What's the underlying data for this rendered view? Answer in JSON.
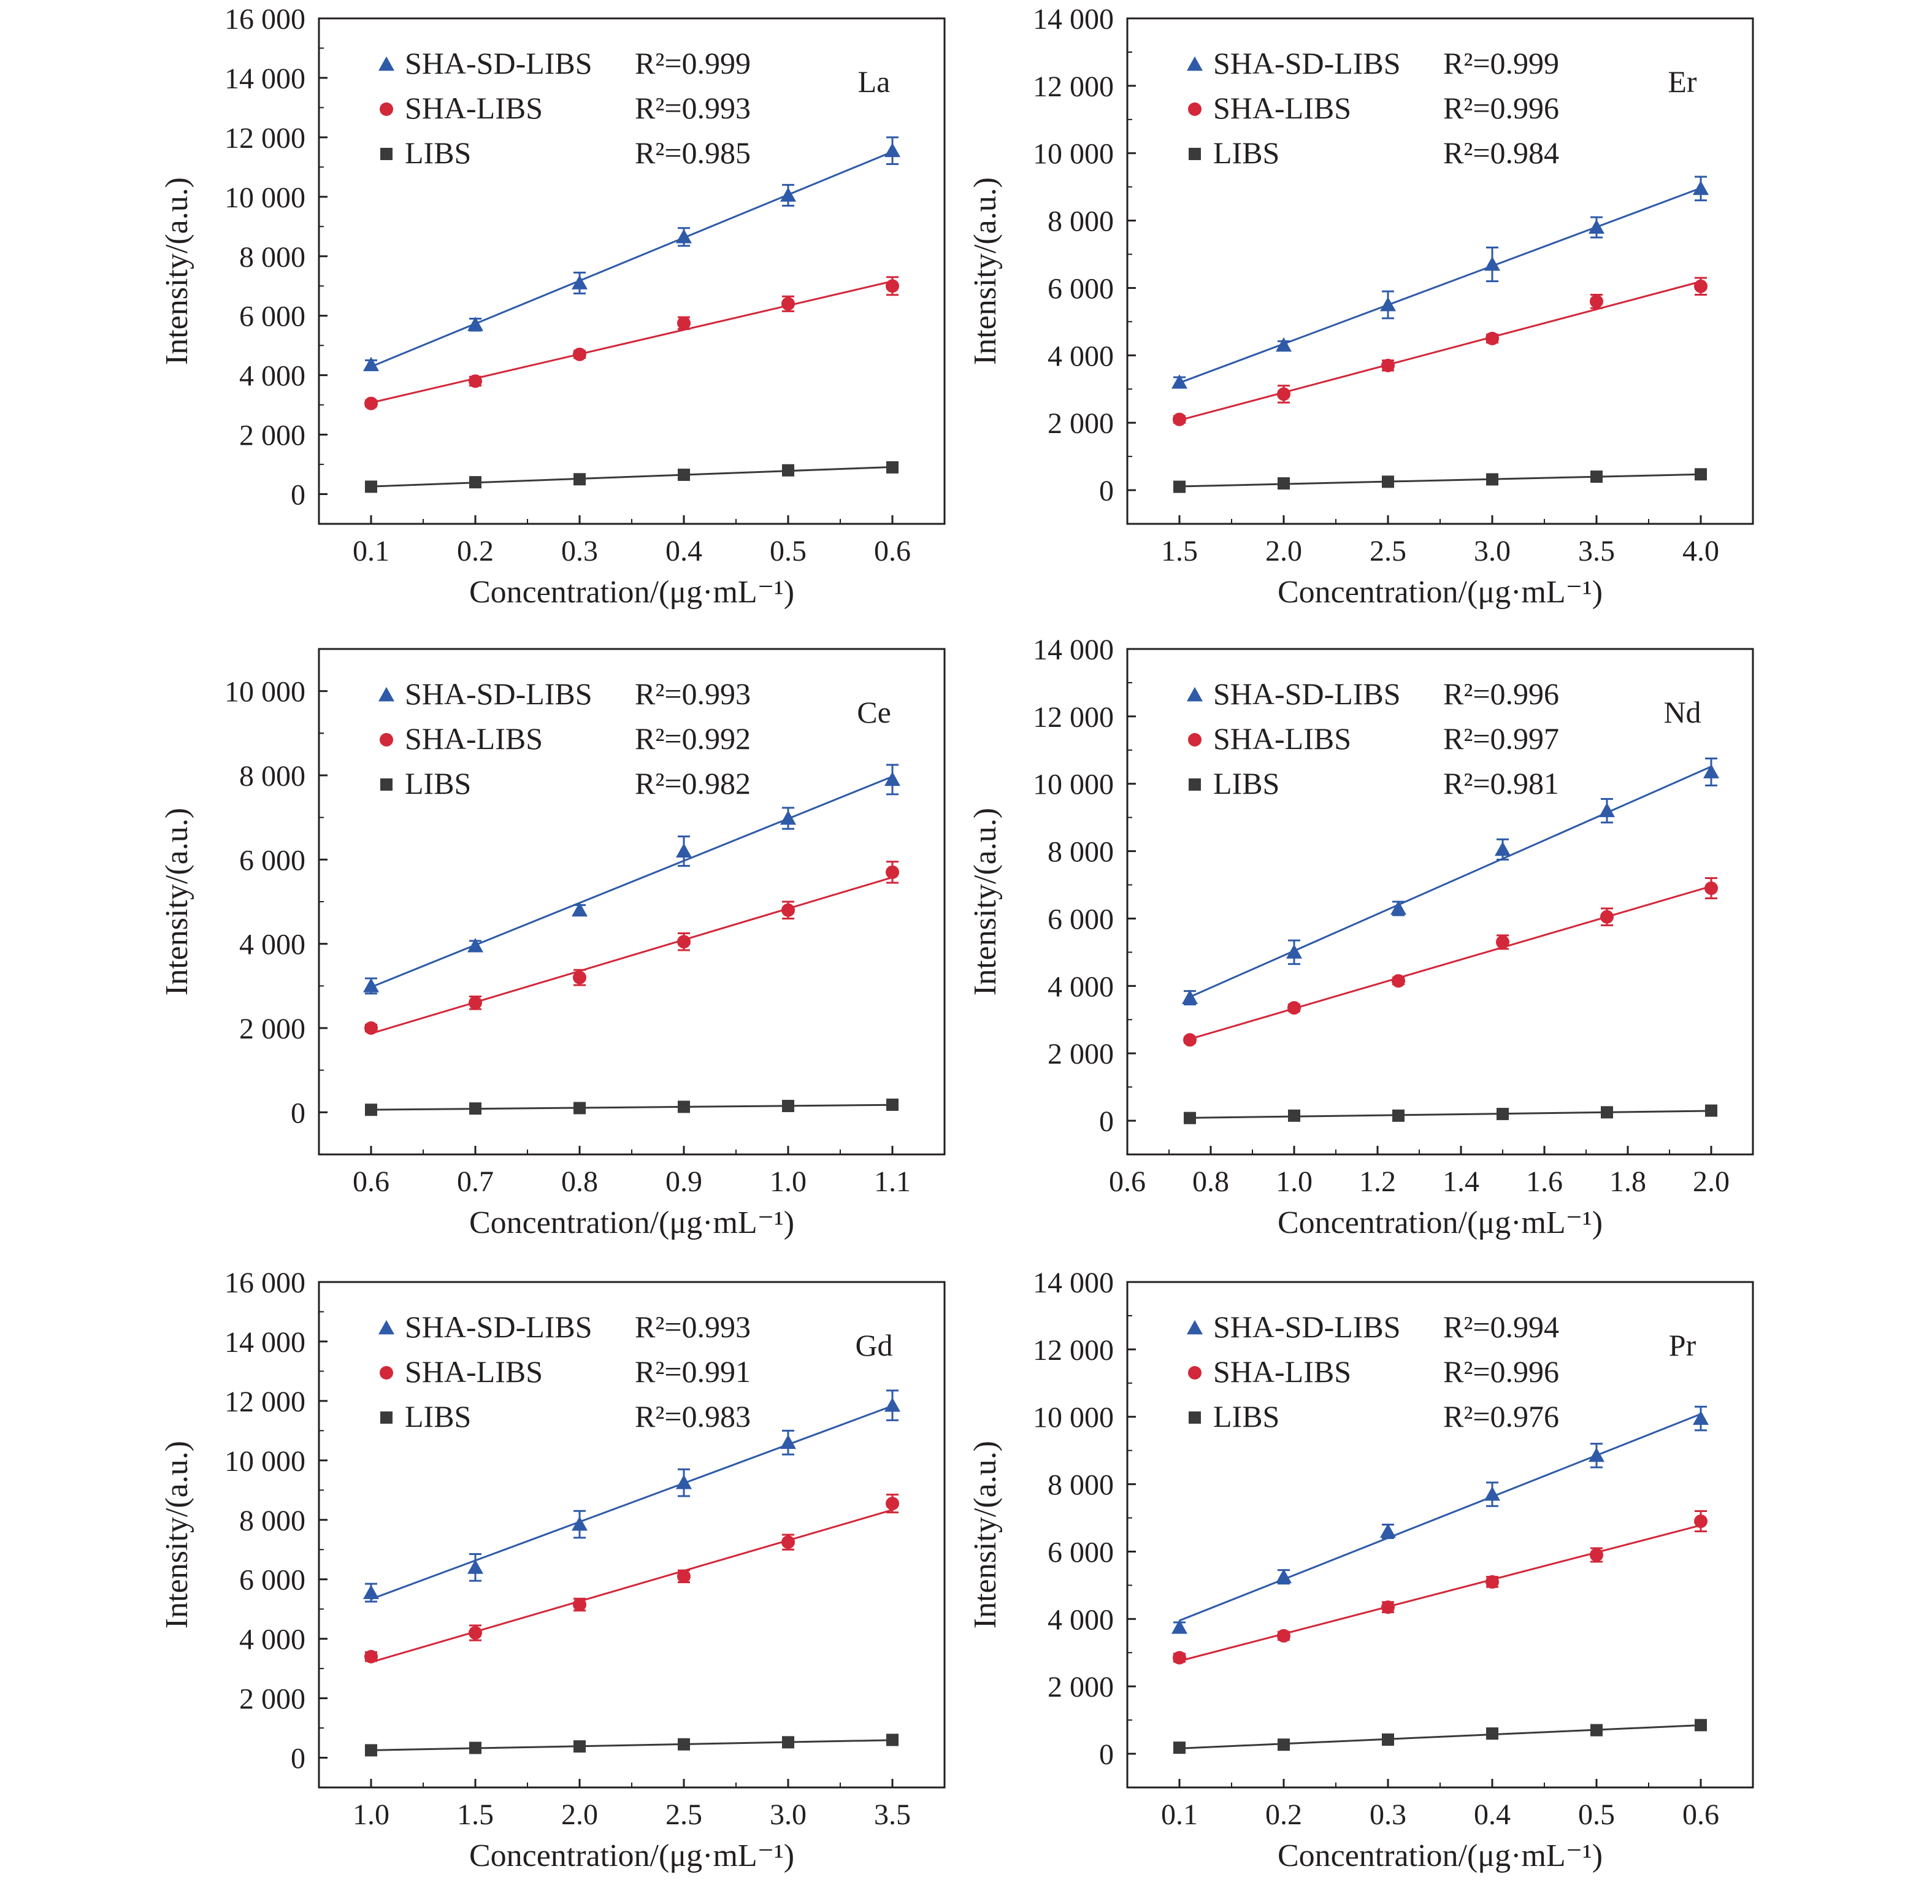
{
  "colors": {
    "SHA-SD-LIBS": "#2e5aa8",
    "SHA-LIBS": "#d3273a",
    "LIBS": "#3a3a3a",
    "axis": "#231f20"
  },
  "markers": {
    "SHA-SD-LIBS": "triangle",
    "SHA-LIBS": "circle",
    "LIBS": "square"
  },
  "chart_data": [
    {
      "type": "scatter",
      "element": "La",
      "xlabel": "Concentration/(μg·mL⁻¹)",
      "ylabel": "Intensity/(a.u.)",
      "xlim": [
        0.05,
        0.65
      ],
      "ylim": [
        -1000,
        16000
      ],
      "xticks": [
        0.1,
        0.2,
        0.3,
        0.4,
        0.5,
        0.6
      ],
      "xtick_labels": [
        "0.1",
        "0.2",
        "0.3",
        "0.4",
        "0.5",
        "0.6"
      ],
      "yticks": [
        0,
        2000,
        4000,
        6000,
        8000,
        10000,
        12000,
        14000,
        16000
      ],
      "ytick_labels": [
        "0",
        "2 000",
        "4 000",
        "6 000",
        "8 000",
        "10 000",
        "12 000",
        "14 000",
        "16 000"
      ],
      "grid": false,
      "legend_position": "top-left",
      "x": [
        0.1,
        0.2,
        0.3,
        0.4,
        0.5,
        0.6
      ],
      "series": [
        {
          "name": "SHA-SD-LIBS",
          "r2": "R²=0.999",
          "values": [
            4350,
            5700,
            7100,
            8650,
            10050,
            11550
          ],
          "errors": [
            150,
            200,
            350,
            300,
            350,
            450
          ]
        },
        {
          "name": "SHA-LIBS",
          "r2": "R²=0.993",
          "values": [
            3050,
            3800,
            4700,
            5750,
            6400,
            7000
          ],
          "errors": [
            100,
            150,
            120,
            200,
            250,
            300
          ]
        },
        {
          "name": "LIBS",
          "r2": "R²=0.985",
          "values": [
            250,
            400,
            500,
            650,
            800,
            900
          ],
          "errors": [
            40,
            40,
            50,
            50,
            50,
            50
          ]
        }
      ]
    },
    {
      "type": "scatter",
      "element": "Er",
      "xlabel": "Concentration/(μg·mL⁻¹)",
      "ylabel": "Intensity/(a.u.)",
      "xlim": [
        1.25,
        4.25
      ],
      "ylim": [
        -1000,
        14000
      ],
      "xticks": [
        1.5,
        2.0,
        2.5,
        3.0,
        3.5,
        4.0
      ],
      "xtick_labels": [
        "1.5",
        "2.0",
        "2.5",
        "3.0",
        "3.5",
        "4.0"
      ],
      "yticks": [
        0,
        2000,
        4000,
        6000,
        8000,
        10000,
        12000,
        14000
      ],
      "ytick_labels": [
        "0",
        "2 000",
        "4 000",
        "6 000",
        "8 000",
        "10 000",
        "12 000",
        "14 000"
      ],
      "grid": false,
      "legend_position": "top-left",
      "x": [
        1.5,
        2.0,
        2.5,
        3.0,
        3.5,
        4.0
      ],
      "series": [
        {
          "name": "SHA-SD-LIBS",
          "r2": "R²=0.999",
          "values": [
            3200,
            4300,
            5500,
            6700,
            7800,
            8950
          ],
          "errors": [
            150,
            120,
            400,
            500,
            300,
            350
          ]
        },
        {
          "name": "SHA-LIBS",
          "r2": "R²=0.996",
          "values": [
            2100,
            2850,
            3700,
            4500,
            5600,
            6050
          ],
          "errors": [
            100,
            250,
            150,
            120,
            200,
            250
          ]
        },
        {
          "name": "LIBS",
          "r2": "R²=0.984",
          "values": [
            100,
            200,
            250,
            320,
            400,
            470
          ],
          "errors": [
            40,
            40,
            40,
            40,
            40,
            40
          ]
        }
      ]
    },
    {
      "type": "scatter",
      "element": "Ce",
      "xlabel": "Concentration/(μg·mL⁻¹)",
      "ylabel": "Intensity/(a.u.)",
      "xlim": [
        0.55,
        1.15
      ],
      "ylim": [
        -1000,
        11000
      ],
      "xticks": [
        0.6,
        0.7,
        0.8,
        0.9,
        1.0,
        1.1
      ],
      "xtick_labels": [
        "0.6",
        "0.7",
        "0.8",
        "0.9",
        "1.0",
        "1.1"
      ],
      "yticks": [
        0,
        2000,
        4000,
        6000,
        8000,
        10000
      ],
      "ytick_labels": [
        "0",
        "2 000",
        "4 000",
        "6 000",
        "8 000",
        "10 000"
      ],
      "grid": false,
      "legend_position": "top-left",
      "x": [
        0.6,
        0.7,
        0.8,
        0.9,
        1.0,
        1.1
      ],
      "series": [
        {
          "name": "SHA-SD-LIBS",
          "r2": "R²=0.993",
          "values": [
            3000,
            3950,
            4800,
            6200,
            6980,
            7900
          ],
          "errors": [
            180,
            120,
            120,
            350,
            250,
            350
          ]
        },
        {
          "name": "SHA-LIBS",
          "r2": "R²=0.992",
          "values": [
            2000,
            2600,
            3200,
            4050,
            4800,
            5700
          ],
          "errors": [
            80,
            150,
            180,
            200,
            200,
            250
          ]
        },
        {
          "name": "LIBS",
          "r2": "R²=0.982",
          "values": [
            60,
            90,
            100,
            130,
            150,
            180
          ],
          "errors": [
            30,
            30,
            30,
            30,
            30,
            30
          ]
        }
      ]
    },
    {
      "type": "scatter",
      "element": "Nd",
      "xlabel": "Concentration/(μg·mL⁻¹)",
      "ylabel": "Intensity/(a.u.)",
      "xlim": [
        0.6,
        2.1
      ],
      "ylim": [
        -1000,
        14000
      ],
      "xticks": [
        0.6,
        0.8,
        1.0,
        1.2,
        1.4,
        1.6,
        1.8,
        2.0
      ],
      "xtick_labels": [
        "0.6",
        "0.8",
        "1.0",
        "1.2",
        "1.4",
        "1.6",
        "1.8",
        "2.0"
      ],
      "yticks": [
        0,
        2000,
        4000,
        6000,
        8000,
        10000,
        12000,
        14000
      ],
      "ytick_labels": [
        "0",
        "2 000",
        "4 000",
        "6 000",
        "8 000",
        "10 000",
        "12 000",
        "14 000"
      ],
      "grid": false,
      "legend_position": "top-left",
      "x": [
        0.75,
        1.0,
        1.25,
        1.5,
        1.75,
        2.0
      ],
      "series": [
        {
          "name": "SHA-SD-LIBS",
          "r2": "R²=0.996",
          "values": [
            3650,
            5000,
            6300,
            8050,
            9200,
            10350
          ],
          "errors": [
            200,
            350,
            200,
            300,
            350,
            400
          ]
        },
        {
          "name": "SHA-LIBS",
          "r2": "R²=0.997",
          "values": [
            2400,
            3350,
            4150,
            5300,
            6050,
            6900
          ],
          "errors": [
            80,
            100,
            100,
            200,
            250,
            300
          ]
        },
        {
          "name": "LIBS",
          "r2": "R²=0.981",
          "values": [
            80,
            150,
            150,
            200,
            250,
            300
          ],
          "errors": [
            30,
            30,
            30,
            30,
            30,
            30
          ]
        }
      ]
    },
    {
      "type": "scatter",
      "element": "Gd",
      "xlabel": "Concentration/(μg·mL⁻¹)",
      "ylabel": "Intensity/(a.u.)",
      "xlim": [
        0.75,
        3.75
      ],
      "ylim": [
        -1000,
        16000
      ],
      "xticks": [
        1.0,
        1.5,
        2.0,
        2.5,
        3.0,
        3.5
      ],
      "xtick_labels": [
        "1.0",
        "1.5",
        "2.0",
        "2.5",
        "3.0",
        "3.5"
      ],
      "yticks": [
        0,
        2000,
        4000,
        6000,
        8000,
        10000,
        12000,
        14000,
        16000
      ],
      "ytick_labels": [
        "0",
        "2 000",
        "4 000",
        "6 000",
        "8 000",
        "10 000",
        "12 000",
        "14 000",
        "16 000"
      ],
      "grid": false,
      "legend_position": "top-left",
      "x": [
        1.0,
        1.5,
        2.0,
        2.5,
        3.0,
        3.5
      ],
      "series": [
        {
          "name": "SHA-SD-LIBS",
          "r2": "R²=0.993",
          "values": [
            5550,
            6400,
            7850,
            9250,
            10600,
            11850
          ],
          "errors": [
            300,
            450,
            450,
            450,
            400,
            500
          ]
        },
        {
          "name": "SHA-LIBS",
          "r2": "R²=0.991",
          "values": [
            3400,
            4200,
            5150,
            6100,
            7250,
            8550
          ],
          "errors": [
            150,
            250,
            200,
            200,
            250,
            300
          ]
        },
        {
          "name": "LIBS",
          "r2": "R²=0.983",
          "values": [
            250,
            330,
            380,
            450,
            520,
            600
          ],
          "errors": [
            40,
            40,
            40,
            40,
            40,
            40
          ]
        }
      ]
    },
    {
      "type": "scatter",
      "element": "Pr",
      "xlabel": "Concentration/(μg·mL⁻¹)",
      "ylabel": "Intensity/(a.u.)",
      "xlim": [
        0.05,
        0.65
      ],
      "ylim": [
        -1000,
        14000
      ],
      "xticks": [
        0.1,
        0.2,
        0.3,
        0.4,
        0.5,
        0.6
      ],
      "xtick_labels": [
        "0.1",
        "0.2",
        "0.3",
        "0.4",
        "0.5",
        "0.6"
      ],
      "yticks": [
        0,
        2000,
        4000,
        6000,
        8000,
        10000,
        12000,
        14000
      ],
      "ytick_labels": [
        "0",
        "2 000",
        "4 000",
        "6 000",
        "8 000",
        "10 000",
        "12 000",
        "14 000"
      ],
      "grid": false,
      "legend_position": "top-left",
      "x": [
        0.1,
        0.2,
        0.3,
        0.4,
        0.5,
        0.6
      ],
      "series": [
        {
          "name": "SHA-SD-LIBS",
          "r2": "R²=0.994",
          "values": [
            3750,
            5250,
            6600,
            7700,
            8850,
            9950
          ],
          "errors": [
            150,
            200,
            200,
            350,
            350,
            350
          ]
        },
        {
          "name": "SHA-LIBS",
          "r2": "R²=0.996",
          "values": [
            2850,
            3500,
            4350,
            5100,
            5900,
            6900
          ],
          "errors": [
            120,
            120,
            150,
            150,
            200,
            300
          ]
        },
        {
          "name": "LIBS",
          "r2": "R²=0.976",
          "values": [
            180,
            270,
            420,
            600,
            700,
            850
          ],
          "errors": [
            50,
            50,
            50,
            50,
            60,
            60
          ]
        }
      ]
    }
  ]
}
